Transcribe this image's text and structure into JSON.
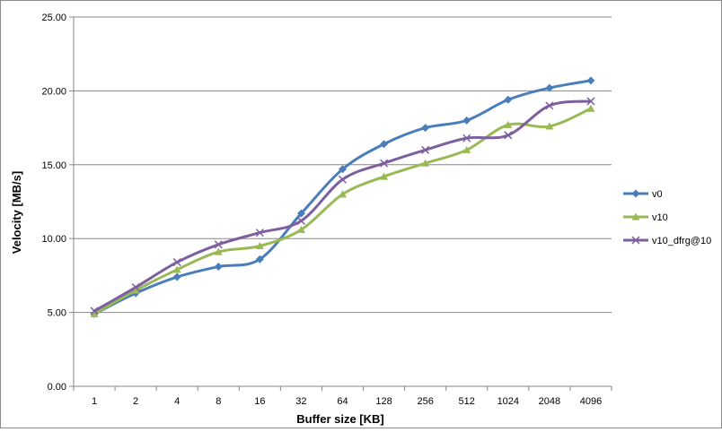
{
  "chart_data": {
    "type": "line",
    "title": "",
    "xlabel": "Buffer size [KB]",
    "ylabel": "Velocity [MB/s]",
    "categories": [
      "1",
      "2",
      "4",
      "8",
      "16",
      "32",
      "64",
      "128",
      "256",
      "512",
      "1024",
      "2048",
      "4096"
    ],
    "ylim": [
      0,
      25
    ],
    "ytick_labels": [
      "0.00",
      "5.00",
      "10.00",
      "15.00",
      "20.00",
      "25.00"
    ],
    "grid": "horizontal",
    "legend": "right",
    "smoothed": true,
    "series": [
      {
        "name": "v0",
        "color": "#4a7ebb",
        "marker": "diamond",
        "values": [
          4.9,
          6.3,
          7.4,
          8.1,
          8.6,
          11.7,
          14.7,
          16.4,
          17.5,
          18.0,
          19.4,
          20.2,
          20.7
        ]
      },
      {
        "name": "v10",
        "color": "#98b954",
        "marker": "triangle",
        "values": [
          4.9,
          6.5,
          7.9,
          9.1,
          9.5,
          10.6,
          13.0,
          14.2,
          15.1,
          16.0,
          17.7,
          17.6,
          18.8
        ]
      },
      {
        "name": "v10_dfrg@10",
        "color": "#7d5fa0",
        "marker": "x",
        "values": [
          5.1,
          6.7,
          8.4,
          9.6,
          10.4,
          11.2,
          14.0,
          15.1,
          16.0,
          16.8,
          17.0,
          19.0,
          19.3
        ]
      }
    ]
  }
}
